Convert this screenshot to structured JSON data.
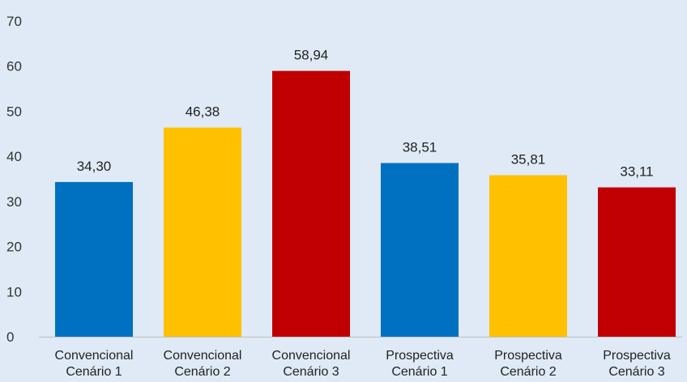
{
  "chart_data": {
    "type": "bar",
    "categories": [
      [
        "Convencional",
        "Cenário 1"
      ],
      [
        "Convencional",
        "Cenário 2"
      ],
      [
        "Convencional",
        "Cenário 3"
      ],
      [
        "Prospectiva",
        "Cenário 1"
      ],
      [
        "Prospectiva",
        "Cenário 2"
      ],
      [
        "Prospectiva",
        "Cenário 3"
      ]
    ],
    "values": [
      34.3,
      46.38,
      58.94,
      38.51,
      35.81,
      33.11
    ],
    "value_labels": [
      "34,30",
      "46,38",
      "58,94",
      "38,51",
      "35,81",
      "33,11"
    ],
    "bar_colors": [
      "#0070c0",
      "#ffc000",
      "#c00000",
      "#0070c0",
      "#ffc000",
      "#c00000"
    ],
    "ylim": [
      0,
      70
    ],
    "yticks": [
      0,
      10,
      20,
      30,
      40,
      50,
      60,
      70
    ],
    "grid": false,
    "legend": false,
    "background": "#dfeaf6"
  }
}
